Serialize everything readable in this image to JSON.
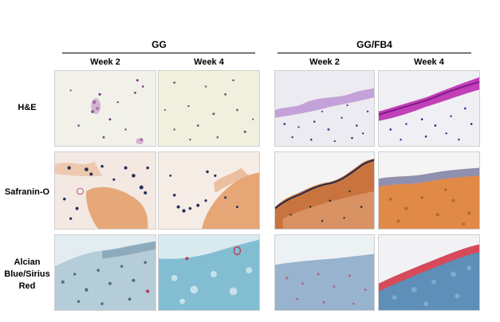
{
  "groups": [
    {
      "title": "GG",
      "columns": [
        "Week 2",
        "Week 4"
      ]
    },
    {
      "title": "GG/FB4",
      "columns": [
        "Week 2",
        "Week 4"
      ]
    }
  ],
  "rows": [
    {
      "label": "H&E",
      "stain": "he"
    },
    {
      "label": "Safranin-O",
      "stain": "saf"
    },
    {
      "label_lines": [
        "Alcian",
        "Blue/Sirius",
        "Red"
      ],
      "stain": "ab"
    }
  ],
  "colors": {
    "he_background": "#f1f0e2",
    "he_nuclei": "#6a2f7a",
    "he_edge": "#c23fb8",
    "safranin_orange": "#e39659",
    "safranin_nuclei": "#24305a",
    "alcian_blue": "#7fb2c9",
    "sirius_red": "#d64a5a"
  }
}
